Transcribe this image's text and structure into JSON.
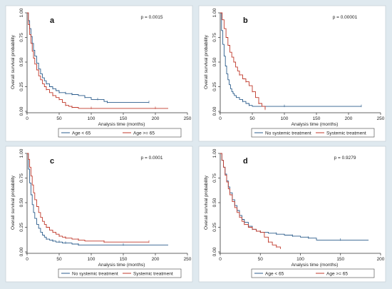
{
  "colors": {
    "background": "#dfe9ef",
    "plot_bg": "#ffffff",
    "series_blue": "#2c5d8c",
    "series_red": "#c0392b",
    "axis": "#333333"
  },
  "chart_data": [
    {
      "type": "line",
      "panel_label": "a",
      "p_value": "p = 0.0015",
      "xlabel": "Analysis time (months)",
      "ylabel": "Overall survival probability",
      "xlim": [
        0,
        250
      ],
      "ylim": [
        0,
        1
      ],
      "xticks": [
        "0",
        "50",
        "100",
        "150",
        "200",
        "250"
      ],
      "yticks": [
        "0.00",
        "0.25",
        "0.50",
        "0.75",
        "1.00"
      ],
      "legend_position": "bottom",
      "series": [
        {
          "name": "Age < 65",
          "color": "#2c5d8c",
          "x": [
            0,
            2,
            4,
            6,
            8,
            10,
            12,
            15,
            18,
            21,
            24,
            27,
            30,
            35,
            40,
            45,
            50,
            55,
            60,
            65,
            70,
            80,
            90,
            100,
            110,
            120,
            125,
            150,
            190
          ],
          "y": [
            1.0,
            0.92,
            0.84,
            0.76,
            0.69,
            0.62,
            0.56,
            0.49,
            0.43,
            0.38,
            0.34,
            0.31,
            0.28,
            0.25,
            0.23,
            0.21,
            0.19,
            0.19,
            0.18,
            0.18,
            0.17,
            0.16,
            0.14,
            0.12,
            0.12,
            0.1,
            0.09,
            0.09,
            0.09
          ]
        },
        {
          "name": "Age >= 65",
          "color": "#c0392b",
          "x": [
            0,
            2,
            4,
            6,
            8,
            10,
            12,
            15,
            18,
            21,
            24,
            27,
            30,
            35,
            40,
            45,
            50,
            55,
            60,
            65,
            70,
            80,
            100,
            150,
            200,
            220
          ],
          "y": [
            1.0,
            0.88,
            0.78,
            0.69,
            0.61,
            0.54,
            0.48,
            0.42,
            0.36,
            0.32,
            0.28,
            0.25,
            0.22,
            0.19,
            0.16,
            0.14,
            0.12,
            0.09,
            0.06,
            0.05,
            0.04,
            0.03,
            0.03,
            0.03,
            0.03,
            0.03
          ]
        }
      ]
    },
    {
      "type": "line",
      "panel_label": "b",
      "p_value": "p = 0.00001",
      "xlabel": "Analysis time (months)",
      "ylabel": "Overall survival probability",
      "xlim": [
        0,
        250
      ],
      "ylim": [
        0,
        1
      ],
      "xticks": [
        "0",
        "50",
        "100",
        "150",
        "200",
        "250"
      ],
      "yticks": [
        "0.00",
        "0.25",
        "0.50",
        "0.75",
        "1.00"
      ],
      "legend_position": "bottom",
      "series": [
        {
          "name": "No systemic treatment",
          "color": "#2c5d8c",
          "x": [
            0,
            2,
            4,
            6,
            8,
            10,
            12,
            14,
            16,
            18,
            20,
            22,
            25,
            30,
            35,
            40,
            45,
            50,
            100,
            150,
            220
          ],
          "y": [
            1.0,
            0.82,
            0.68,
            0.56,
            0.46,
            0.38,
            0.32,
            0.27,
            0.23,
            0.2,
            0.18,
            0.16,
            0.14,
            0.12,
            0.1,
            0.08,
            0.06,
            0.05,
            0.05,
            0.05,
            0.05
          ]
        },
        {
          "name": "Systemic treatment",
          "color": "#c0392b",
          "x": [
            0,
            3,
            6,
            9,
            12,
            15,
            18,
            21,
            24,
            27,
            30,
            35,
            40,
            45,
            50,
            55,
            60,
            65,
            70
          ],
          "y": [
            1.0,
            0.93,
            0.84,
            0.75,
            0.67,
            0.6,
            0.55,
            0.5,
            0.45,
            0.41,
            0.37,
            0.33,
            0.3,
            0.26,
            0.2,
            0.14,
            0.08,
            0.05,
            0.02
          ]
        }
      ]
    },
    {
      "type": "line",
      "panel_label": "c",
      "p_value": "p = 0.0001",
      "xlabel": "Analysis time (months)",
      "ylabel": "Overall survival probability",
      "xlim": [
        0,
        250
      ],
      "ylim": [
        0,
        1
      ],
      "xticks": [
        "0",
        "50",
        "100",
        "150",
        "200",
        "250"
      ],
      "yticks": [
        "0.00",
        "0.25",
        "0.50",
        "0.75",
        "1.00"
      ],
      "legend_position": "bottom",
      "series": [
        {
          "name": "No systemic treatment",
          "color": "#2c5d8c",
          "x": [
            0,
            2,
            4,
            6,
            8,
            10,
            12,
            15,
            18,
            21,
            24,
            27,
            30,
            35,
            40,
            45,
            50,
            55,
            60,
            70,
            80,
            100,
            150,
            220
          ],
          "y": [
            1.0,
            0.84,
            0.7,
            0.58,
            0.48,
            0.4,
            0.34,
            0.28,
            0.24,
            0.2,
            0.17,
            0.15,
            0.13,
            0.12,
            0.11,
            0.1,
            0.1,
            0.09,
            0.09,
            0.08,
            0.07,
            0.07,
            0.07,
            0.07
          ]
        },
        {
          "name": "Systemic treatment",
          "color": "#c0392b",
          "x": [
            0,
            2,
            4,
            6,
            8,
            10,
            12,
            15,
            18,
            21,
            24,
            27,
            30,
            35,
            40,
            45,
            50,
            55,
            60,
            70,
            80,
            90,
            120,
            150,
            190
          ],
          "y": [
            1.0,
            0.94,
            0.86,
            0.77,
            0.68,
            0.6,
            0.53,
            0.46,
            0.4,
            0.35,
            0.31,
            0.28,
            0.25,
            0.22,
            0.2,
            0.18,
            0.16,
            0.15,
            0.14,
            0.13,
            0.12,
            0.11,
            0.1,
            0.1,
            0.1
          ]
        }
      ]
    },
    {
      "type": "line",
      "panel_label": "d",
      "p_value": "p = 0.9279",
      "xlabel": "Analysis time (months)",
      "ylabel": "Overall survival probability",
      "xlim": [
        0,
        200
      ],
      "ylim": [
        0,
        1
      ],
      "xticks": [
        "0",
        "50",
        "100",
        "150",
        "200"
      ],
      "yticks": [
        "0.00",
        "0.25",
        "0.50",
        "0.75",
        "1.00"
      ],
      "legend_position": "bottom",
      "series": [
        {
          "name": "Age < 65",
          "color": "#2c5d8c",
          "x": [
            0,
            2,
            4,
            6,
            8,
            10,
            12,
            15,
            18,
            21,
            24,
            27,
            30,
            35,
            40,
            45,
            50,
            60,
            70,
            80,
            90,
            100,
            110,
            120,
            150,
            185
          ],
          "y": [
            1.0,
            0.93,
            0.86,
            0.79,
            0.72,
            0.66,
            0.6,
            0.53,
            0.47,
            0.42,
            0.37,
            0.33,
            0.3,
            0.26,
            0.23,
            0.21,
            0.2,
            0.19,
            0.18,
            0.17,
            0.16,
            0.15,
            0.14,
            0.12,
            0.12,
            0.12
          ]
        },
        {
          "name": "Age >= 65",
          "color": "#c0392b",
          "x": [
            0,
            2,
            4,
            6,
            8,
            10,
            12,
            15,
            18,
            21,
            24,
            27,
            30,
            35,
            40,
            45,
            50,
            55,
            60,
            65,
            70,
            75
          ],
          "y": [
            1.0,
            0.93,
            0.86,
            0.78,
            0.71,
            0.64,
            0.58,
            0.51,
            0.45,
            0.4,
            0.35,
            0.31,
            0.28,
            0.25,
            0.23,
            0.21,
            0.2,
            0.15,
            0.1,
            0.07,
            0.05,
            0.03
          ]
        }
      ]
    }
  ]
}
